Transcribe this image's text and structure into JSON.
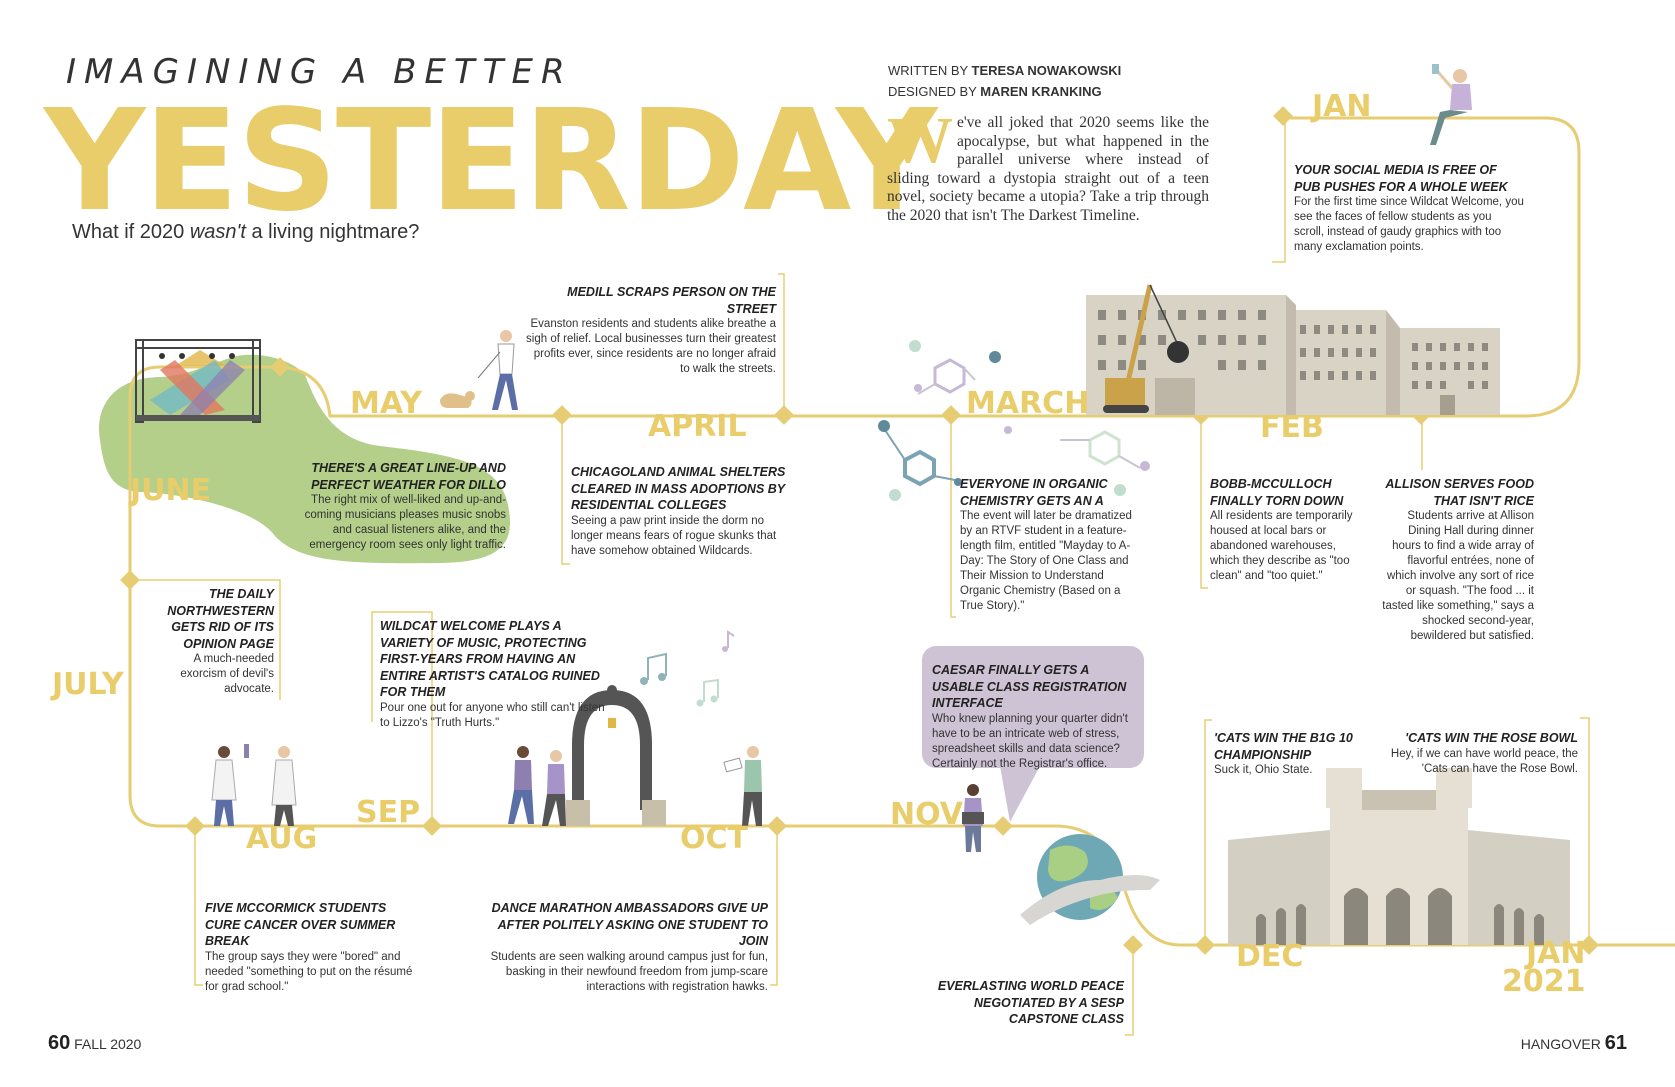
{
  "header": {
    "kicker": "IMAGINING A BETTER",
    "title": "YESTERDAY",
    "subtitle_pre": "What if 2020 ",
    "subtitle_em": "wasn't",
    "subtitle_post": " a living nightmare?"
  },
  "credits": {
    "written_label": "WRITTEN BY ",
    "written_name": "TERESA NOWAKOWSKI",
    "designed_label": "DESIGNED BY ",
    "designed_name": "MAREN KRANKING"
  },
  "intro": {
    "dropcap": "W",
    "text": "e've all joked that 2020 seems like the apocalypse, but what happened in the parallel universe where instead of sliding toward a dystopia straight out of a teen novel, society became a utopia? Take a trip through the 2020 that isn't The Darkest Timeline."
  },
  "months": {
    "jan": "JAN",
    "feb": "FEB",
    "march": "MARCH",
    "april": "APRIL",
    "may": "MAY",
    "june": "JUNE",
    "july": "JULY",
    "aug": "AUG",
    "sep": "SEP",
    "oct": "OCT",
    "nov": "NOV",
    "dec": "DEC",
    "jan2021_a": "JAN",
    "jan2021_b": "2021"
  },
  "events": {
    "jan": {
      "head": "YOUR SOCIAL MEDIA IS FREE OF PUB PUSHES FOR A WHOLE WEEK",
      "body": "For the first time since Wildcat Welcome, you see the faces of fellow students as you scroll, instead of gaudy graphics with too many exclamation points."
    },
    "allison": {
      "head": "ALLISON SERVES FOOD THAT ISN'T RICE",
      "body": "Students arrive at Allison Dining Hall during dinner hours to find a wide array of flavorful entrées, none of which involve any sort of rice or squash. \"The food ... it tasted like something,\" says a shocked second-year, bewildered but satisfied."
    },
    "feb": {
      "head": "BOBB-McCULLOCH FINALLY TORN DOWN",
      "body": "All residents are temporarily housed at local bars or abandoned warehouses, which they describe as \"too clean\" and \"too quiet.\""
    },
    "march": {
      "head": "EVERYONE IN ORGANIC CHEMISTRY GETS AN A",
      "body": "The event will later be dramatized by an RTVF student in a feature-length film, entitled \"Mayday to A-Day: The Story of One Class and Their Mission to Understand Organic Chemistry (Based on a True Story).\""
    },
    "april": {
      "head": "CHICAGOLAND ANIMAL SHELTERS CLEARED IN MASS ADOPTIONS BY RESIDENTIAL COLLEGES",
      "body": "Seeing a paw print inside the dorm no longer means fears of rogue skunks that have somehow obtained Wildcards."
    },
    "medill": {
      "head": "MEDILL SCRAPS PERSON ON THE STREET",
      "body": "Evanston residents and students alike breathe a sigh of relief. Local businesses turn their greatest profits ever, since residents are no longer afraid to walk the streets."
    },
    "june": {
      "head": "THERE'S A GREAT LINE-UP AND PERFECT WEATHER FOR DILLO",
      "body": "The right mix of well-liked and up-and-coming musicians pleases music snobs and casual listeners alike, and the emergency room sees only light traffic."
    },
    "july": {
      "head": "THE DAILY NORTHWESTERN GETS RID OF ITS OPINION PAGE",
      "body": "A much-needed exorcism of devil's advocate."
    },
    "sep": {
      "head": "WILDCAT WELCOME PLAYS A VARIETY OF MUSIC, PROTECTING FIRST-YEARS FROM HAVING AN ENTIRE ARTIST'S CATALOG RUINED FOR THEM",
      "body": "Pour one out for anyone who still can't listen to Lizzo's \"Truth Hurts.\""
    },
    "aug": {
      "head": "FIVE McCORMICK STUDENTS CURE CANCER OVER SUMMER BREAK",
      "body": "The group says they were \"bored\" and needed \"something to put on the résumé for grad school.\""
    },
    "oct": {
      "head": "DANCE MARATHON AMBASSADORS GIVE UP AFTER POLITELY ASKING ONE STUDENT TO JOIN",
      "body": "Students are seen walking around campus just for fun, basking in their newfound freedom from jump-scare interactions with registration hawks."
    },
    "nov": {
      "head": "CAESAR FINALLY GETS A USABLE CLASS REGISTRATION INTERFACE",
      "body": "Who knew planning your quarter didn't have to be an intricate web of stress, spreadsheet skills and data science? Certainly not the Registrar's office."
    },
    "peace": {
      "head": "EVERLASTING WORLD PEACE NEGOTIATED BY A SESP CAPSTONE CLASS",
      "body": ""
    },
    "big10": {
      "head": "'CATS WIN THE B1G 10 CHAMPIONSHIP",
      "body": "Suck it, Ohio State."
    },
    "rose": {
      "head": "'CATS WIN THE ROSE BOWL",
      "body": "Hey, if we can have world peace, the 'Cats can have the Rose Bowl."
    }
  },
  "footer": {
    "left_num": "60",
    "left_text": "FALL 2020",
    "right_text": "HANGOVER",
    "right_num": "61"
  },
  "colors": {
    "accent": "#e9cd6b",
    "green": "#b3cf8a",
    "lavender": "#cdc3d4",
    "line": "#e6cd73"
  }
}
